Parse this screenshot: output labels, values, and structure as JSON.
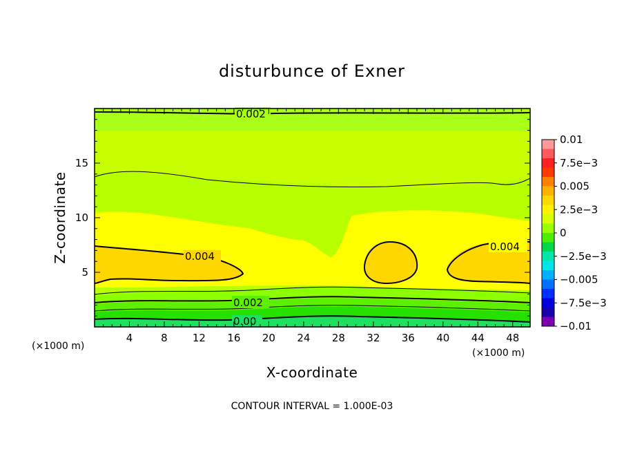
{
  "chart_data": {
    "type": "contour",
    "title": "disturbunce of Exner",
    "xlabel": "X-coordinate",
    "ylabel": "Z-coordinate",
    "x_unit": "(×1000 m)",
    "x_unit_right": "(×1000 m)",
    "xlim": [
      0,
      50
    ],
    "ylim": [
      0,
      20
    ],
    "xticks": [
      4,
      8,
      12,
      16,
      20,
      24,
      28,
      32,
      36,
      40,
      44,
      48
    ],
    "yticks": [
      5,
      10,
      15
    ],
    "contour_interval_text": "CONTOUR INTERVAL = 1.000E-03",
    "contour_labels": [
      "0.002",
      "0.004",
      "0.004",
      "0.002",
      "0.00"
    ],
    "colorbar": {
      "labels": [
        "0.01",
        "7.5e-3",
        "0.005",
        "2.5e-3",
        "0",
        "-2.5e-3",
        "-0.005",
        "-7.5e-3",
        "-0.01"
      ],
      "colors": [
        "#ff9a9a",
        "#ff5a5a",
        "#ff2020",
        "#ff3a00",
        "#ff8000",
        "#ffb300",
        "#ffd700",
        "#fff200",
        "#d8ff00",
        "#9cff00",
        "#4dee00",
        "#00d84a",
        "#00e6a8",
        "#00e5e5",
        "#00b0ff",
        "#0070ff",
        "#0030ff",
        "#0000dd",
        "#1a00a8",
        "#7a00b0"
      ]
    },
    "fill_colors": {
      "band_top": "#aaff18",
      "band_upper": "#c8ff00",
      "band_mid": "#ffff00",
      "band_max": "#ffd700",
      "band_low1": "#b8ff00",
      "band_low2": "#8cff00",
      "band_low3": "#5cf000",
      "band_low4": "#26e000",
      "band_bottom": "#20e060"
    }
  }
}
